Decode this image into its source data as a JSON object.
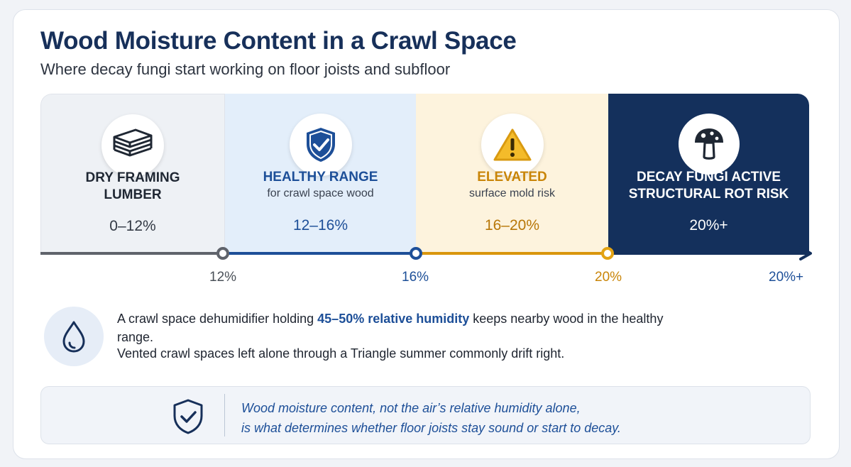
{
  "title": "Wood Moisture Content in a Crawl Space",
  "subtitle": "Where decay fungi start working on floor joists and subfloor",
  "segments": [
    {
      "label_line1": "DRY FRAMING",
      "label_line2": "LUMBER",
      "sub": "",
      "range": "0–12%",
      "icon": "stacked-lumber-icon",
      "color": "#eef1f5"
    },
    {
      "label_line1": "HEALTHY RANGE",
      "label_line2": "",
      "sub": "for crawl space wood",
      "range": "12–16%",
      "icon": "shield-check-icon",
      "color": "#e3eefa"
    },
    {
      "label_line1": "ELEVATED",
      "label_line2": "",
      "sub": "surface mold risk",
      "range": "16–20%",
      "icon": "warning-icon",
      "color": "#fdf3dd"
    },
    {
      "label_line1": "DECAY FUNGI ACTIVE",
      "label_line2": "STRUCTURAL ROT RISK",
      "sub": "",
      "range": "20%+",
      "icon": "mushroom-icon",
      "color": "#14305c"
    }
  ],
  "ticks": [
    "12%",
    "16%",
    "20%",
    "20%+"
  ],
  "info": {
    "text_before": "A crawl space dehumidifier holding ",
    "highlight": "45–50% relative humidity",
    "text_after": " keeps nearby wood in the healthy range.",
    "line2": "Vented crawl spaces left alone through a Triangle summer commonly drift right.",
    "icon": "water-drop-icon"
  },
  "note": {
    "line1": "Wood moisture content, not the air’s relative humidity alone,",
    "line2": "is what determines whether floor joists stay sound or start to decay.",
    "icon": "shield-check-icon"
  },
  "colors": {
    "navy": "#14305c",
    "blue": "#1d4f98",
    "amber": "#c98508",
    "gray": "#5f636b"
  }
}
